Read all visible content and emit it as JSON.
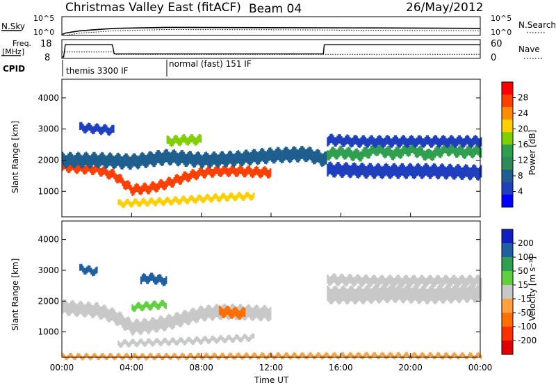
{
  "header": {
    "station": "Christmas Valley East (fitACF)",
    "beam": "Beam 04",
    "date": "26/May/2012"
  },
  "noise_panel": {
    "left_label": "N.Sky",
    "left_ticks": [
      "10^5",
      "10^0"
    ],
    "right_ticks": [
      "10^5",
      "10^0"
    ],
    "right_label": "N.Search"
  },
  "freq_panel": {
    "left_label_1": "Freq.",
    "left_label_2": "[MHz]",
    "left_ticks": [
      "18",
      "8"
    ],
    "right_ticks": [
      "60",
      "0"
    ],
    "right_label": "Nave"
  },
  "cpid": {
    "label": "CPID",
    "modes": [
      {
        "name": "themis 3300 IF",
        "start_hour": 0,
        "end_hour": 6
      },
      {
        "name": "normal (fast) 151 IF",
        "start_hour": 6,
        "end_hour": 24
      }
    ]
  },
  "x_axis": {
    "label": "Time UT",
    "ticks": [
      "00:00",
      "04:00",
      "08:00",
      "12:00",
      "16:00",
      "20:00",
      "00:00"
    ],
    "range_hours": [
      0,
      24
    ]
  },
  "power_colorbar": {
    "label": "Power [dB]",
    "ticks": [
      "28",
      "24",
      "20",
      "16",
      "12",
      "8",
      "4"
    ],
    "colors": [
      "#ff0000",
      "#ff4000",
      "#ff8c00",
      "#ffd000",
      "#80d000",
      "#30a050",
      "#2e8b57",
      "#1f5f8f",
      "#1f3fbf",
      "#0000ff"
    ]
  },
  "velocity_colorbar": {
    "label": "Velocity [m s⁻¹]",
    "ticks": [
      "200",
      "100",
      "50",
      "15",
      "-15",
      "-50",
      "-100",
      "-200"
    ],
    "colors": [
      "#1020c0",
      "#2060a0",
      "#30a050",
      "#60d040",
      "#c8c8c8",
      "#ffa040",
      "#ff7000",
      "#ff3000",
      "#e00000"
    ]
  },
  "chart_data": [
    {
      "type": "line",
      "title": "Christmas Valley East (fitACF) Beam 04 26/May/2012",
      "panel": "noise",
      "series": [
        {
          "name": "N.Sky",
          "x": [
            0,
            0.1,
            0.2,
            1,
            3,
            6,
            12,
            18,
            24
          ],
          "values": [
            1,
            1,
            2,
            10,
            60,
            120,
            100,
            80,
            60
          ]
        },
        {
          "name": "N.Search",
          "x": [
            0,
            0.1,
            0.2,
            1,
            3,
            6,
            12,
            18,
            24
          ],
          "values": [
            1,
            1,
            1,
            5,
            30,
            70,
            60,
            40,
            30
          ]
        }
      ]
    },
    {
      "type": "line",
      "panel": "frequency",
      "series": [
        {
          "name": "Freq.",
          "x": [
            0,
            0.1,
            0.2,
            1,
            1.05,
            2.9,
            3,
            15,
            15.05,
            24
          ],
          "values": [
            8,
            8,
            16,
            16,
            16,
            16,
            10,
            10,
            16,
            16
          ]
        },
        {
          "name": "Nave",
          "x": [
            0,
            3,
            3.05,
            24
          ],
          "values": [
            20,
            20,
            10,
            10
          ]
        }
      ]
    },
    {
      "type": "heatmap",
      "panel": "power",
      "xlabel": "Time UT",
      "ylabel": "Slant Range [km]",
      "xlim": [
        0,
        24
      ],
      "ylim": [
        180,
        4600
      ],
      "yticks": [
        1000,
        2000,
        3000,
        4000
      ],
      "colorbar": "Power [dB]",
      "bands": [
        {
          "x": [
            0,
            1,
            2,
            3,
            4,
            5,
            6,
            7,
            8,
            9,
            10,
            11,
            12
          ],
          "center_km": [
            1800,
            1740,
            1700,
            1500,
            1050,
            1100,
            1250,
            1450,
            1600,
            1650,
            1650,
            1620,
            1600
          ],
          "width_km": 280,
          "power_db": 26
        },
        {
          "x": [
            3.2,
            4.5,
            6,
            7,
            8,
            9,
            10,
            11
          ],
          "center_km": [
            600,
            640,
            680,
            720,
            760,
            800,
            830,
            850
          ],
          "width_km": 180,
          "power_db": 22
        },
        {
          "x": [
            0,
            2,
            4,
            6,
            8,
            10,
            12,
            14,
            15.2
          ],
          "center_km": [
            2000,
            2000,
            1950,
            2100,
            2000,
            2050,
            2150,
            2200,
            2000
          ],
          "width_km": 420,
          "power_db": 10
        },
        {
          "x": [
            15.2,
            16,
            17,
            18,
            19,
            20,
            21,
            22,
            23,
            24
          ],
          "center_km": [
            2200,
            2250,
            2150,
            2350,
            2200,
            2350,
            2150,
            2350,
            2250,
            2300
          ],
          "width_km": 320,
          "power_db": 14
        },
        {
          "x": [
            15.2,
            17,
            19,
            21,
            24
          ],
          "center_km": [
            2650,
            2600,
            2600,
            2600,
            2600
          ],
          "width_km": 300,
          "power_db": 6
        },
        {
          "x": [
            15.2,
            18,
            21,
            24
          ],
          "center_km": [
            1700,
            1650,
            1650,
            1600
          ],
          "width_km": 400,
          "power_db": 5
        },
        {
          "x": [
            1,
            2,
            3
          ],
          "center_km": [
            3050,
            3000,
            2950
          ],
          "width_km": 250,
          "power_db": 6
        },
        {
          "x": [
            6,
            7,
            8
          ],
          "center_km": [
            2600,
            2650,
            2650
          ],
          "width_km": 260,
          "power_db": 18
        }
      ]
    },
    {
      "type": "heatmap",
      "panel": "velocity",
      "xlabel": "Time UT",
      "ylabel": "Slant Range [km]",
      "xlim": [
        0,
        24
      ],
      "ylim": [
        180,
        4600
      ],
      "yticks": [
        1000,
        2000,
        3000,
        4000
      ],
      "colorbar": "Velocity [m s⁻¹]",
      "bands": [
        {
          "x": [
            0,
            1,
            2,
            3,
            4,
            5,
            6,
            7,
            8,
            9,
            10,
            11,
            12
          ],
          "center_km": [
            1800,
            1740,
            1700,
            1500,
            1150,
            1200,
            1300,
            1450,
            1600,
            1650,
            1650,
            1620,
            1600
          ],
          "width_km": 420,
          "velocity": 0
        },
        {
          "x": [
            15.2,
            17,
            19,
            21,
            23,
            24
          ],
          "center_km": [
            2200,
            2200,
            2250,
            2200,
            2250,
            2250
          ],
          "width_km": 500,
          "velocity": 0
        },
        {
          "x": [
            15.2,
            18,
            21,
            24
          ],
          "center_km": [
            2700,
            2650,
            2650,
            2650
          ],
          "width_km": 300,
          "velocity": 5
        },
        {
          "x": [
            3.2,
            5,
            7,
            9,
            11
          ],
          "center_km": [
            620,
            660,
            700,
            760,
            820
          ],
          "width_km": 160,
          "velocity": 0
        },
        {
          "x": [
            9,
            9.5,
            10,
            10.5
          ],
          "center_km": [
            1650,
            1650,
            1600,
            1600
          ],
          "width_km": 300,
          "velocity": -60
        },
        {
          "x": [
            4,
            5,
            6
          ],
          "center_km": [
            1800,
            1850,
            1900
          ],
          "width_km": 200,
          "velocity": 40
        },
        {
          "x": [
            1,
            1.5,
            2
          ],
          "center_km": [
            3050,
            3000,
            2950
          ],
          "width_km": 220,
          "velocity": 150
        },
        {
          "x": [
            4.5,
            5,
            5.5,
            6
          ],
          "center_km": [
            2700,
            2750,
            2700,
            2650
          ],
          "width_km": 260,
          "velocity": 180
        },
        {
          "x": [
            0,
            6,
            12,
            18,
            24
          ],
          "center_km": [
            200,
            200,
            220,
            230,
            220
          ],
          "width_km": 120,
          "velocity": -50
        }
      ]
    }
  ]
}
